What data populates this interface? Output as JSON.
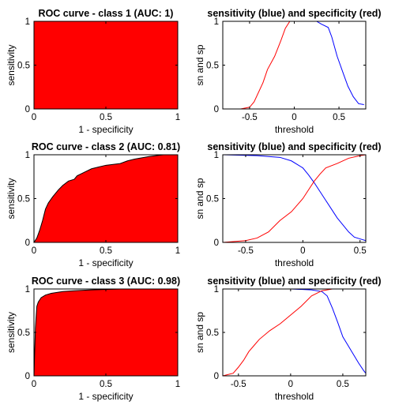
{
  "chart_data": [
    {
      "type": "area",
      "title": "ROC curve - class 1 (AUC: 1)",
      "xlabel": "1 - specificity",
      "ylabel": "sensitivity",
      "xlim": [
        0,
        1
      ],
      "ylim": [
        0,
        1
      ],
      "xticks": [
        0,
        0.5,
        1
      ],
      "yticks": [
        0,
        0.5,
        1
      ],
      "xtick_labels": [
        "0",
        "0.5",
        "1"
      ],
      "ytick_labels": [
        "0",
        "0.5",
        "1"
      ],
      "fill_color": "#ff0000",
      "x": [
        0,
        0,
        1
      ],
      "y": [
        0,
        1,
        1
      ]
    },
    {
      "type": "line",
      "title": "sensitivity (blue) and specificity (red)",
      "xlabel": "threshold",
      "ylabel": "sn and sp",
      "xlim": [
        -0.8,
        0.8
      ],
      "ylim": [
        0,
        1
      ],
      "xticks": [
        -0.5,
        0,
        0.5
      ],
      "yticks": [
        0,
        0.5,
        1
      ],
      "xtick_labels": [
        "-0.5",
        "0",
        "0.5"
      ],
      "ytick_labels": [
        "0",
        "0.5",
        "1"
      ],
      "series": [
        {
          "color": "#0000ff",
          "x": [
            -0.8,
            0.25,
            0.3,
            0.38,
            0.42,
            0.48,
            0.55,
            0.6,
            0.66,
            0.72,
            0.78
          ],
          "y": [
            1,
            1,
            0.97,
            0.93,
            0.82,
            0.6,
            0.4,
            0.26,
            0.14,
            0.06,
            0.05
          ]
        },
        {
          "color": "#ff0000",
          "x": [
            -0.8,
            -0.6,
            -0.5,
            -0.45,
            -0.35,
            -0.3,
            -0.22,
            -0.15,
            -0.1,
            -0.05,
            0.8
          ],
          "y": [
            0,
            0,
            0.02,
            0.08,
            0.3,
            0.45,
            0.6,
            0.78,
            0.92,
            1,
            1
          ]
        }
      ]
    },
    {
      "type": "area",
      "title": "ROC curve - class 2 (AUC: 0.81)",
      "xlabel": "1 - specificity",
      "ylabel": "sensitivity",
      "xlim": [
        0,
        1
      ],
      "ylim": [
        0,
        1
      ],
      "xticks": [
        0,
        0.5,
        1
      ],
      "yticks": [
        0,
        0.5,
        1
      ],
      "xtick_labels": [
        "0",
        "0.5",
        "1"
      ],
      "ytick_labels": [
        "0",
        "0.5",
        "1"
      ],
      "fill_color": "#ff0000",
      "x": [
        0,
        0.02,
        0.04,
        0.06,
        0.08,
        0.1,
        0.13,
        0.17,
        0.2,
        0.24,
        0.28,
        0.3,
        0.35,
        0.4,
        0.45,
        0.5,
        0.6,
        0.65,
        0.7,
        0.8,
        0.9,
        1
      ],
      "y": [
        0,
        0.05,
        0.14,
        0.25,
        0.38,
        0.45,
        0.52,
        0.6,
        0.65,
        0.7,
        0.72,
        0.76,
        0.8,
        0.84,
        0.86,
        0.88,
        0.9,
        0.93,
        0.95,
        0.98,
        1,
        1
      ]
    },
    {
      "type": "line",
      "title": "sensitivity (blue) and specificity (red)",
      "xlabel": "threshold",
      "ylabel": "sn and sp",
      "xlim": [
        -0.7,
        0.55
      ],
      "ylim": [
        0,
        1
      ],
      "xticks": [
        -0.5,
        0,
        0.5
      ],
      "yticks": [
        0,
        0.5,
        1
      ],
      "xtick_labels": [
        "-0.5",
        "0",
        "0.5"
      ],
      "ytick_labels": [
        "0",
        "0.5",
        "1"
      ],
      "series": [
        {
          "color": "#0000ff",
          "x": [
            -0.7,
            -0.4,
            -0.2,
            -0.1,
            0,
            0.05,
            0.1,
            0.15,
            0.2,
            0.25,
            0.3,
            0.35,
            0.4,
            0.45,
            0.5,
            0.55
          ],
          "y": [
            1,
            0.99,
            0.97,
            0.93,
            0.85,
            0.77,
            0.68,
            0.58,
            0.48,
            0.38,
            0.28,
            0.2,
            0.12,
            0.06,
            0.04,
            0.02
          ]
        },
        {
          "color": "#ff0000",
          "x": [
            -0.7,
            -0.5,
            -0.4,
            -0.3,
            -0.2,
            -0.1,
            0,
            0.05,
            0.1,
            0.15,
            0.2,
            0.3,
            0.4,
            0.5,
            0.55
          ],
          "y": [
            0,
            0.02,
            0.05,
            0.12,
            0.25,
            0.35,
            0.5,
            0.6,
            0.7,
            0.78,
            0.85,
            0.9,
            0.96,
            0.99,
            1
          ]
        }
      ]
    },
    {
      "type": "area",
      "title": "ROC curve - class 3 (AUC: 0.98)",
      "xlabel": "1 - specificity",
      "ylabel": "sensitivity",
      "xlim": [
        0,
        1
      ],
      "ylim": [
        0,
        1
      ],
      "xticks": [
        0,
        0.5,
        1
      ],
      "yticks": [
        0,
        0.5,
        1
      ],
      "xtick_labels": [
        "0",
        "0.5",
        "1"
      ],
      "ytick_labels": [
        "0",
        "0.5",
        "1"
      ],
      "fill_color": "#ff0000",
      "x": [
        0,
        0.01,
        0.015,
        0.02,
        0.03,
        0.05,
        0.08,
        0.12,
        0.2,
        0.28,
        0.4,
        0.6,
        1
      ],
      "y": [
        0,
        0.55,
        0.68,
        0.8,
        0.85,
        0.9,
        0.93,
        0.95,
        0.97,
        0.98,
        0.99,
        1,
        1
      ]
    },
    {
      "type": "line",
      "title": "sensitivity (blue) and specificity (red)",
      "xlabel": "threshold",
      "ylabel": "sn and sp",
      "xlim": [
        -0.65,
        0.72
      ],
      "ylim": [
        0,
        1
      ],
      "xticks": [
        -0.5,
        0,
        0.5
      ],
      "yticks": [
        0,
        0.5,
        1
      ],
      "xtick_labels": [
        "-0.5",
        "0",
        "0.5"
      ],
      "ytick_labels": [
        "0",
        "0.5",
        "1"
      ],
      "series": [
        {
          "color": "#0000ff",
          "x": [
            -0.65,
            0,
            0.2,
            0.3,
            0.35,
            0.4,
            0.45,
            0.5,
            0.55,
            0.6,
            0.65,
            0.7,
            0.72
          ],
          "y": [
            1,
            1,
            0.99,
            0.97,
            0.92,
            0.78,
            0.62,
            0.45,
            0.35,
            0.25,
            0.15,
            0.06,
            0.03
          ]
        },
        {
          "color": "#ff0000",
          "x": [
            -0.65,
            -0.55,
            -0.5,
            -0.45,
            -0.4,
            -0.35,
            -0.3,
            -0.2,
            -0.1,
            0,
            0.1,
            0.2,
            0.3,
            0.4,
            0.5,
            0.72
          ],
          "y": [
            0,
            0.03,
            0.1,
            0.18,
            0.28,
            0.35,
            0.42,
            0.52,
            0.6,
            0.7,
            0.8,
            0.92,
            0.98,
            1,
            1,
            1
          ]
        }
      ]
    }
  ]
}
